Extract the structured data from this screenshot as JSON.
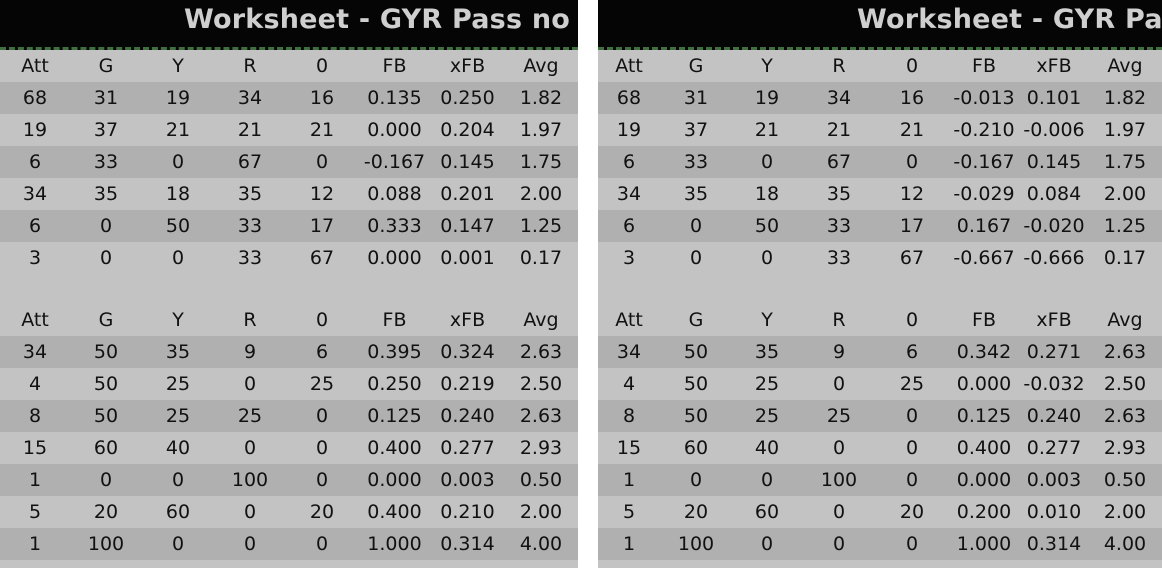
{
  "left": {
    "title": "Worksheet - GYR Pass no",
    "headers": [
      "Att",
      "G",
      "Y",
      "R",
      "0",
      "FB",
      "xFB",
      "Avg"
    ],
    "table1": [
      [
        "68",
        "31",
        "19",
        "34",
        "16",
        "0.135",
        "0.250",
        "1.82"
      ],
      [
        "19",
        "37",
        "21",
        "21",
        "21",
        "0.000",
        "0.204",
        "1.97"
      ],
      [
        "6",
        "33",
        "0",
        "67",
        "0",
        "-0.167",
        "0.145",
        "1.75"
      ],
      [
        "34",
        "35",
        "18",
        "35",
        "12",
        "0.088",
        "0.201",
        "2.00"
      ],
      [
        "6",
        "0",
        "50",
        "33",
        "17",
        "0.333",
        "0.147",
        "1.25"
      ],
      [
        "3",
        "0",
        "0",
        "33",
        "67",
        "0.000",
        "0.001",
        "0.17"
      ]
    ],
    "table2": [
      [
        "34",
        "50",
        "35",
        "9",
        "6",
        "0.395",
        "0.324",
        "2.63"
      ],
      [
        "4",
        "50",
        "25",
        "0",
        "25",
        "0.250",
        "0.219",
        "2.50"
      ],
      [
        "8",
        "50",
        "25",
        "25",
        "0",
        "0.125",
        "0.240",
        "2.63"
      ],
      [
        "15",
        "60",
        "40",
        "0",
        "0",
        "0.400",
        "0.277",
        "2.93"
      ],
      [
        "1",
        "0",
        "0",
        "100",
        "0",
        "0.000",
        "0.003",
        "0.50"
      ],
      [
        "5",
        "20",
        "60",
        "0",
        "20",
        "0.400",
        "0.210",
        "2.00"
      ],
      [
        "1",
        "100",
        "0",
        "0",
        "0",
        "1.000",
        "0.314",
        "4.00"
      ]
    ]
  },
  "right": {
    "title": "Worksheet - GYR Pass",
    "headers": [
      "Att",
      "G",
      "Y",
      "R",
      "0",
      "FB",
      "xFB",
      "Avg"
    ],
    "table1": [
      [
        "68",
        "31",
        "19",
        "34",
        "16",
        "-0.013",
        "0.101",
        "1.82"
      ],
      [
        "19",
        "37",
        "21",
        "21",
        "21",
        "-0.210",
        "-0.006",
        "1.97"
      ],
      [
        "6",
        "33",
        "0",
        "67",
        "0",
        "-0.167",
        "0.145",
        "1.75"
      ],
      [
        "34",
        "35",
        "18",
        "35",
        "12",
        "-0.029",
        "0.084",
        "2.00"
      ],
      [
        "6",
        "0",
        "50",
        "33",
        "17",
        "0.167",
        "-0.020",
        "1.25"
      ],
      [
        "3",
        "0",
        "0",
        "33",
        "67",
        "-0.667",
        "-0.666",
        "0.17"
      ]
    ],
    "table2": [
      [
        "34",
        "50",
        "35",
        "9",
        "6",
        "0.342",
        "0.271",
        "2.63"
      ],
      [
        "4",
        "50",
        "25",
        "0",
        "25",
        "0.000",
        "-0.032",
        "2.50"
      ],
      [
        "8",
        "50",
        "25",
        "25",
        "0",
        "0.125",
        "0.240",
        "2.63"
      ],
      [
        "15",
        "60",
        "40",
        "0",
        "0",
        "0.400",
        "0.277",
        "2.93"
      ],
      [
        "1",
        "0",
        "0",
        "100",
        "0",
        "0.000",
        "0.003",
        "0.50"
      ],
      [
        "5",
        "20",
        "60",
        "0",
        "20",
        "0.200",
        "0.010",
        "2.00"
      ],
      [
        "1",
        "100",
        "0",
        "0",
        "0",
        "1.000",
        "0.314",
        "4.00"
      ]
    ]
  },
  "colors": {
    "titlebar": "#050505",
    "title_text": "#cfcfcf",
    "row_light": "#c3c3c3",
    "row_dark": "#b0b0b0",
    "separator": "#3f6f3f"
  }
}
